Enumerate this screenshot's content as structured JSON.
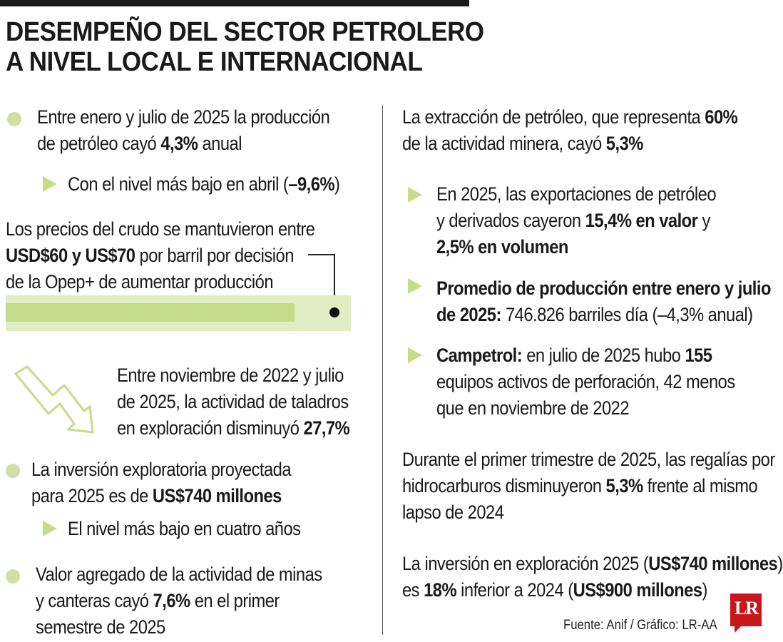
{
  "header": {
    "title_line1": "DESEMPEÑO DEL SECTOR PETROLERO",
    "title_line2": "A NIVEL LOCAL E INTERNACIONAL"
  },
  "left": {
    "item1": {
      "text_a": "Entre enero y julio de 2025 la producción",
      "text_b": "de petróleo cayó ",
      "bold": "4,3%",
      "text_c": " anual"
    },
    "item1_sub": {
      "text_a": "Con el nivel más bajo en abril (",
      "bold": "–9,6%",
      "text_b": ")"
    },
    "prices": {
      "line1": "Los precios del crudo se mantuvieron entre",
      "bold": "USD$60 y US$70",
      "line2_rest": " por barril por decisión",
      "line3": "de la Opep+ de aumentar producción"
    },
    "drills": {
      "line1": "Entre noviembre de 2022 y julio",
      "line2": "de 2025, la actividad de taladros",
      "line3": "en exploración disminuyó ",
      "bold": "27,7%"
    },
    "investment": {
      "line1": "La inversión exploratoria proyectada",
      "line2": "para 2025 es de ",
      "bold": "US$740 millones"
    },
    "investment_sub": {
      "text": "El nivel más bajo en cuatro años"
    },
    "mining": {
      "line1": "Valor agregado de la actividad de minas",
      "line2": "y canteras cayó ",
      "bold": "7,6%",
      "line2_rest": " en el primer",
      "line3": "semestre de 2025"
    }
  },
  "right": {
    "extraction": {
      "line1": "La extracción de petróleo, que representa ",
      "bold1": "60%",
      "line2": "de la actividad minera, cayó ",
      "bold2": "5,3%"
    },
    "exports": {
      "line1": "En 2025, las exportaciones de petróleo",
      "line2": "y derivados cayeron ",
      "bold1": "15,4% en valor",
      "line2_rest": " y",
      "bold2": "2,5% en volumen"
    },
    "production_avg": {
      "bold1": "Promedio de producción entre enero y julio",
      "bold2": "de 2025:",
      "text": " 746.826 barriles día (–4,3% anual)"
    },
    "campetrol": {
      "bold1": "Campetrol:",
      "text1": " en julio de 2025 hubo ",
      "bold2": "155",
      "line2": "equipos activos de perforación, 42 menos",
      "line3": "que en noviembre de 2022"
    },
    "royalties": {
      "line1": "Durante el primer trimestre de 2025, las regalías por",
      "line2": "hidrocarburos disminuyeron ",
      "bold": "5,3%",
      "line2_rest": " frente al mismo",
      "line3": "lapso de 2024"
    },
    "exploration": {
      "line1": "La inversión en exploración 2025 (",
      "bold1": "US$740 millones",
      "line1_rest": ")",
      "line2": "es ",
      "bold2": "18%",
      "line2_mid": " inferior a 2024 (",
      "bold3": "US$900 millones",
      "line2_end": ")"
    }
  },
  "footer": {
    "source": "Fuente: Anif  / Gráfico: LR-AA",
    "logo": "LR"
  },
  "colors": {
    "accent_green": "#c5dc8a",
    "band_green": "#e3edc4",
    "logo_red": "#c8161d",
    "text": "#1a1a1a"
  },
  "icons": {
    "bullet": "green-dot",
    "sub_bullet": "green-triangle",
    "trend": "down-arrow-outline-icon"
  }
}
